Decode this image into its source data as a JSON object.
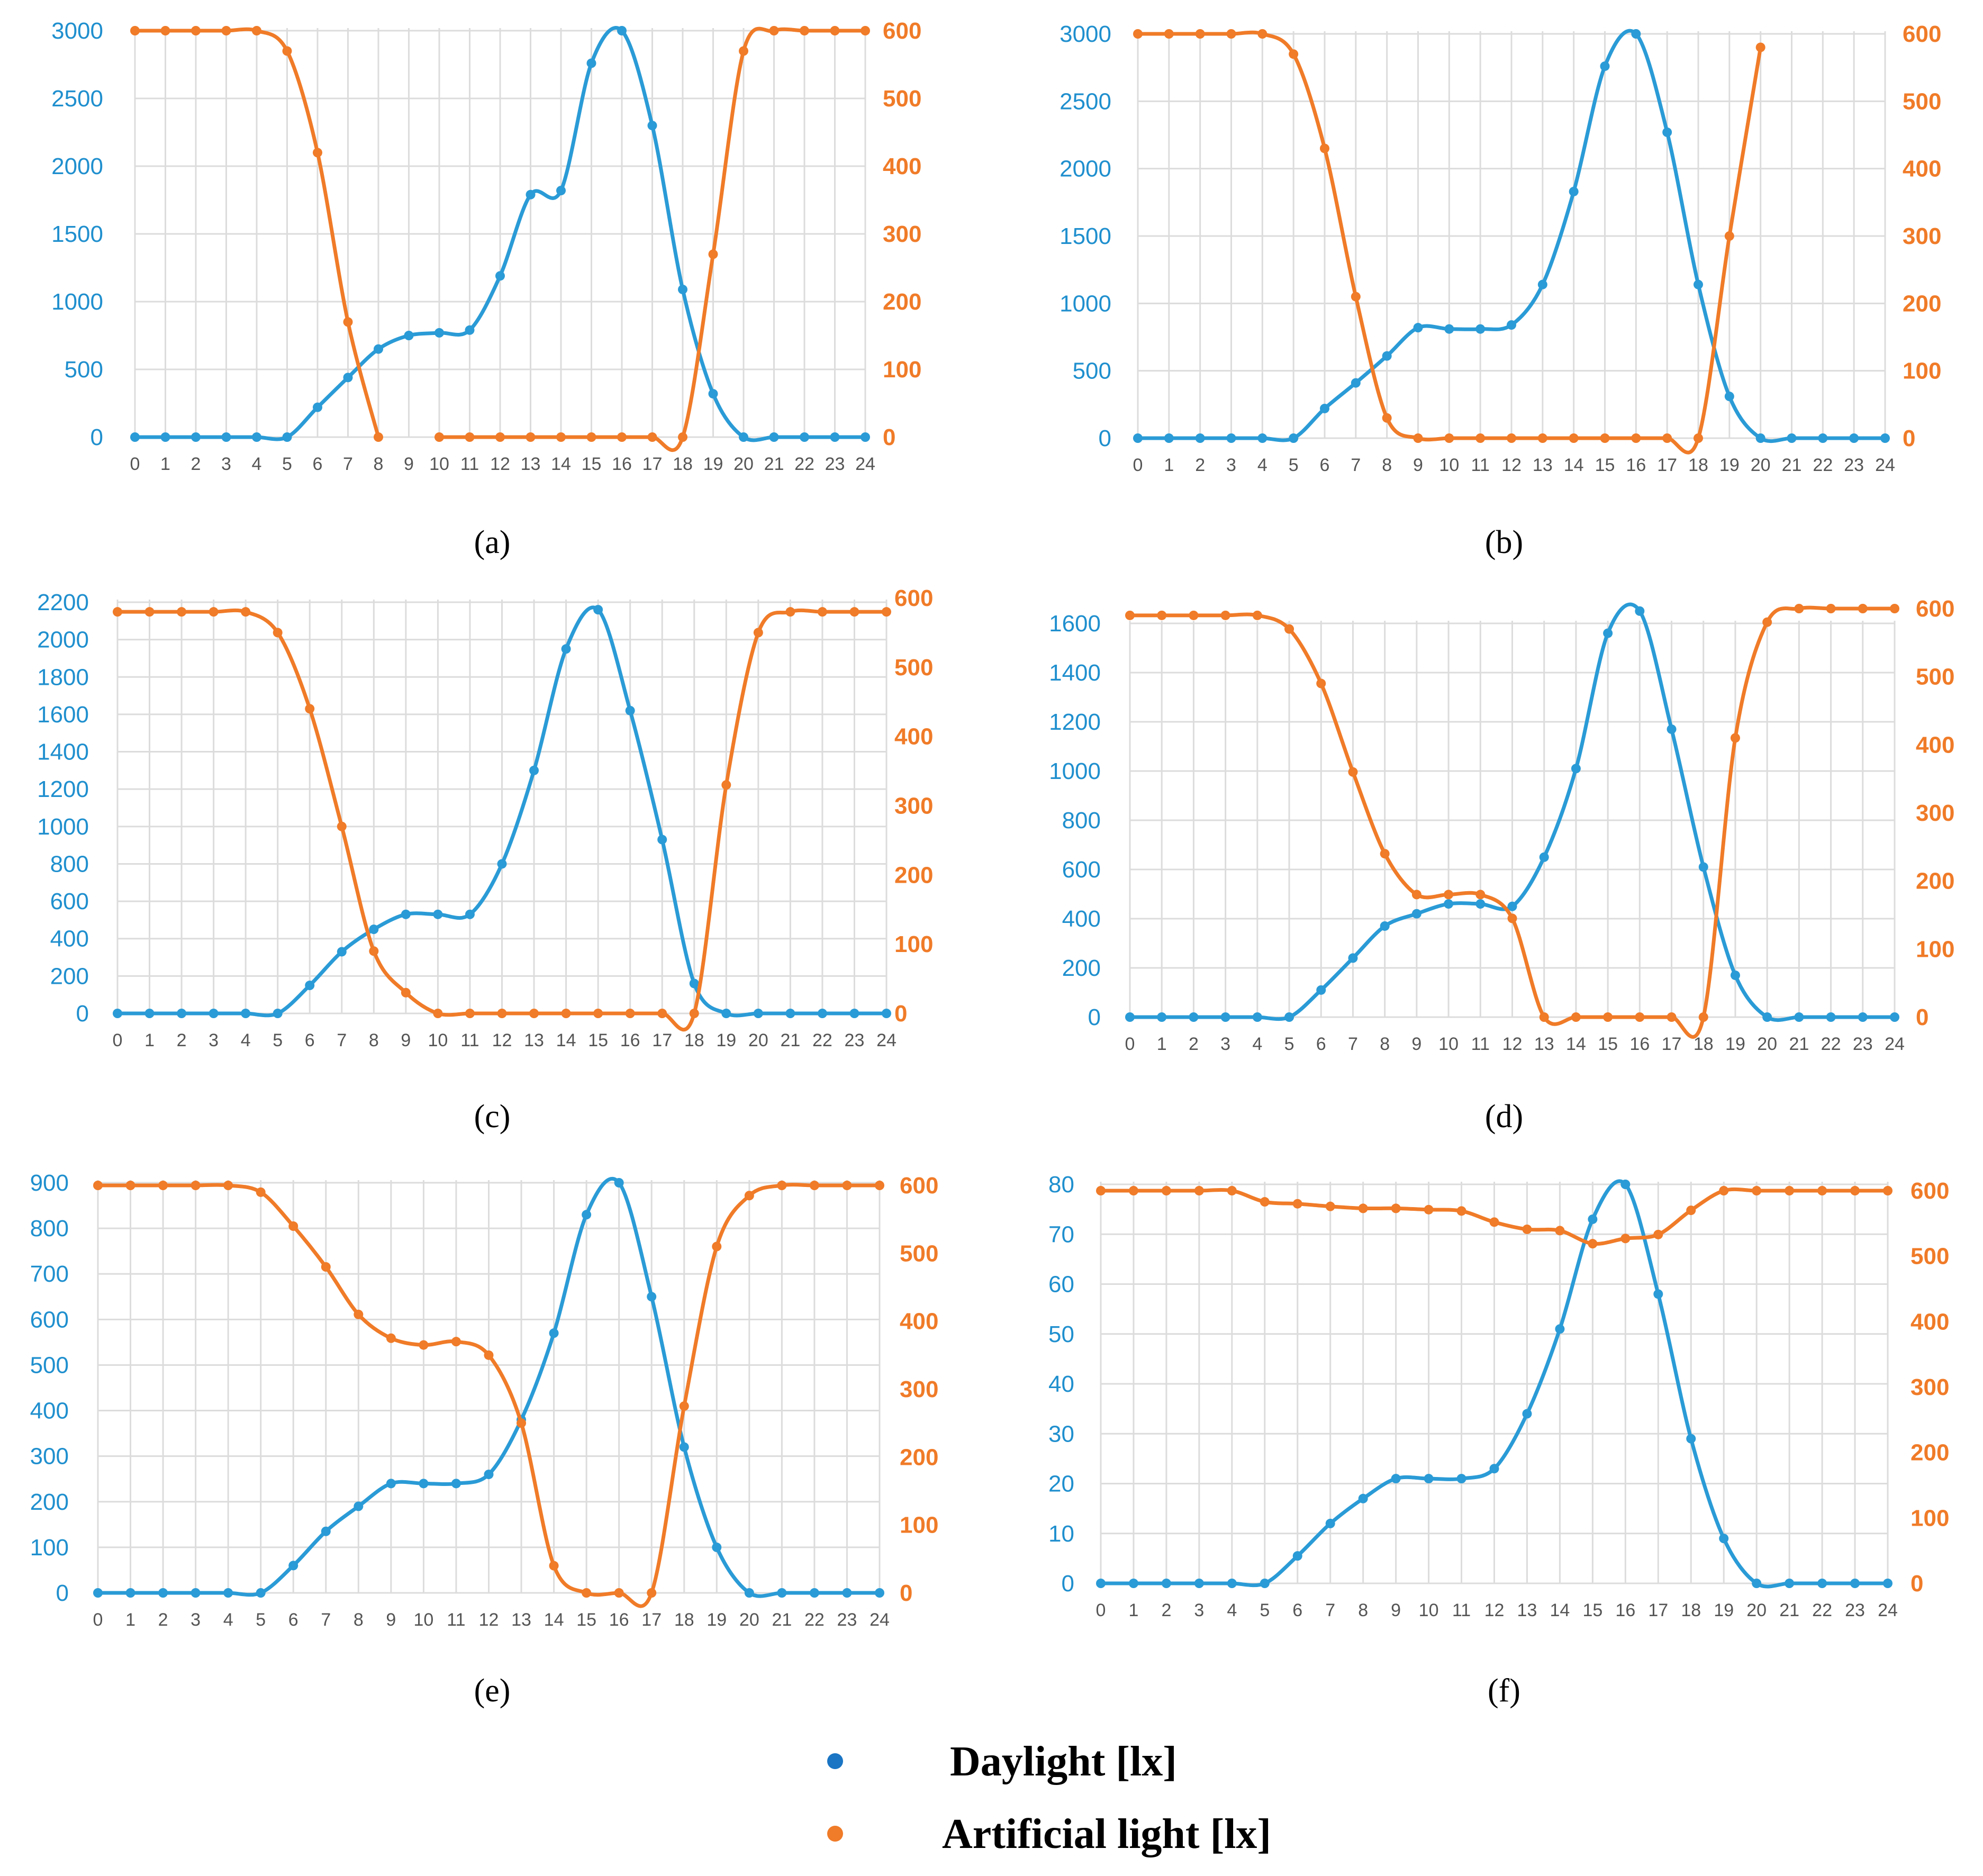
{
  "chart_data": [
    {
      "type": "line",
      "label": "a",
      "categories": [
        "0",
        "1",
        "2",
        "3",
        "4",
        "5",
        "6",
        "7",
        "8",
        "9",
        "10",
        "11",
        "12",
        "13",
        "14",
        "15",
        "16",
        "17",
        "18",
        "19",
        "20",
        "21",
        "22",
        "23",
        "24"
      ],
      "y_left": {
        "ticks": [
          "0",
          "500",
          "1000",
          "1500",
          "2000",
          "2500",
          "3000"
        ],
        "ylim": [
          0,
          3000
        ]
      },
      "y_right": {
        "ticks": [
          "0",
          "100",
          "200",
          "300",
          "400",
          "500",
          "600"
        ],
        "ylim": [
          0,
          600
        ]
      },
      "series": [
        {
          "name": "Daylight [lx]",
          "axis": "left",
          "values": [
            0,
            0,
            0,
            0,
            0,
            0,
            220,
            440,
            650,
            750,
            770,
            790,
            1190,
            1790,
            1820,
            2760,
            3000,
            2300,
            1090,
            320,
            0,
            0,
            0,
            0,
            0
          ]
        },
        {
          "name": "Artificial light [lx]",
          "axis": "right",
          "values": [
            600,
            600,
            600,
            600,
            600,
            570,
            420,
            170,
            0,
            null,
            0,
            0,
            0,
            0,
            0,
            0,
            0,
            0,
            0,
            270,
            570,
            600,
            600,
            600,
            600
          ]
        }
      ]
    },
    {
      "type": "line",
      "label": "b",
      "categories": [
        "0",
        "1",
        "2",
        "3",
        "4",
        "5",
        "6",
        "7",
        "8",
        "9",
        "10",
        "11",
        "12",
        "13",
        "14",
        "15",
        "16",
        "17",
        "18",
        "19",
        "20",
        "21",
        "22",
        "23",
        "24"
      ],
      "y_left": {
        "ticks": [
          "0",
          "500",
          "1000",
          "1500",
          "2000",
          "2500",
          "3000"
        ],
        "ylim": [
          0,
          3000
        ]
      },
      "y_right": {
        "ticks": [
          "0",
          "100",
          "200",
          "300",
          "400",
          "500",
          "600"
        ],
        "ylim": [
          0,
          600
        ]
      },
      "series": [
        {
          "name": "Daylight [lx]",
          "axis": "left",
          "values": [
            0,
            0,
            0,
            0,
            0,
            0,
            220,
            410,
            610,
            820,
            810,
            810,
            840,
            1140,
            1830,
            2760,
            3000,
            2270,
            1140,
            310,
            0,
            0,
            0,
            0,
            0
          ]
        },
        {
          "name": "Artificial light [lx]",
          "axis": "right",
          "values": [
            600,
            600,
            600,
            600,
            600,
            570,
            430,
            210,
            30,
            0,
            0,
            0,
            0,
            0,
            0,
            0,
            0,
            0,
            0,
            300,
            580,
            null,
            null,
            null,
            null
          ]
        }
      ]
    },
    {
      "type": "line",
      "label": "c",
      "categories": [
        "0",
        "1",
        "2",
        "3",
        "4",
        "5",
        "6",
        "7",
        "8",
        "9",
        "10",
        "11",
        "12",
        "13",
        "14",
        "15",
        "16",
        "17",
        "18",
        "19",
        "20",
        "21",
        "22",
        "23",
        "24"
      ],
      "y_left": {
        "ticks": [
          "0",
          "200",
          "400",
          "600",
          "800",
          "1000",
          "1200",
          "1400",
          "1600",
          "1800",
          "2000",
          "2200"
        ],
        "ylim": [
          0,
          2200
        ]
      },
      "y_right": {
        "ticks": [
          "0",
          "100",
          "200",
          "300",
          "400",
          "500",
          "600"
        ],
        "ylim": [
          0,
          600
        ]
      },
      "series": [
        {
          "name": "Daylight [lx]",
          "axis": "left",
          "values": [
            0,
            0,
            0,
            0,
            0,
            0,
            150,
            330,
            450,
            530,
            530,
            530,
            800,
            1300,
            1950,
            2160,
            1620,
            930,
            160,
            0,
            0,
            0,
            0,
            0,
            0
          ]
        },
        {
          "name": "Artificial light [lx]",
          "axis": "right",
          "values": [
            580,
            580,
            580,
            580,
            580,
            550,
            440,
            270,
            90,
            30,
            0,
            0,
            0,
            0,
            0,
            0,
            0,
            0,
            0,
            330,
            550,
            580,
            580,
            580,
            580
          ]
        }
      ]
    },
    {
      "type": "line",
      "label": "d",
      "categories": [
        "0",
        "1",
        "2",
        "3",
        "4",
        "5",
        "6",
        "7",
        "8",
        "9",
        "10",
        "11",
        "12",
        "13",
        "14",
        "15",
        "16",
        "17",
        "18",
        "19",
        "20",
        "21",
        "22",
        "23",
        "24"
      ],
      "y_left": {
        "ticks": [
          "0",
          "200",
          "400",
          "600",
          "800",
          "1000",
          "1200",
          "1400",
          "1600"
        ],
        "ylim": [
          0,
          1700
        ]
      },
      "y_right": {
        "ticks": [
          "0",
          "100",
          "200",
          "300",
          "400",
          "500",
          "600"
        ],
        "ylim": [
          0,
          600
        ]
      },
      "series": [
        {
          "name": "Daylight [lx]",
          "axis": "left",
          "values": [
            0,
            0,
            0,
            0,
            0,
            0,
            110,
            240,
            370,
            420,
            460,
            460,
            450,
            650,
            1010,
            1560,
            1650,
            1170,
            610,
            170,
            0,
            0,
            0,
            0,
            0
          ]
        },
        {
          "name": "Artificial light [lx]",
          "axis": "right",
          "values": [
            590,
            590,
            590,
            590,
            590,
            570,
            490,
            360,
            240,
            180,
            180,
            180,
            145,
            0,
            0,
            0,
            0,
            0,
            0,
            410,
            580,
            600,
            600,
            600,
            600
          ]
        }
      ]
    },
    {
      "type": "line",
      "label": "e",
      "categories": [
        "0",
        "1",
        "2",
        "3",
        "4",
        "5",
        "6",
        "7",
        "8",
        "9",
        "10",
        "11",
        "12",
        "13",
        "14",
        "15",
        "16",
        "17",
        "18",
        "19",
        "20",
        "21",
        "22",
        "23",
        "24"
      ],
      "y_left": {
        "ticks": [
          "0",
          "100",
          "200",
          "300",
          "400",
          "500",
          "600",
          "700",
          "800",
          "900"
        ],
        "ylim": [
          0,
          900
        ]
      },
      "y_right": {
        "ticks": [
          "0",
          "100",
          "200",
          "300",
          "400",
          "500",
          "600"
        ],
        "ylim": [
          0,
          600
        ]
      },
      "series": [
        {
          "name": "Daylight [lx]",
          "axis": "left",
          "values": [
            0,
            0,
            0,
            0,
            0,
            0,
            60,
            135,
            190,
            240,
            240,
            240,
            260,
            380,
            570,
            830,
            900,
            650,
            320,
            100,
            0,
            0,
            0,
            0,
            0
          ]
        },
        {
          "name": "Artificial light [lx]",
          "axis": "right",
          "values": [
            600,
            600,
            600,
            600,
            600,
            590,
            540,
            480,
            410,
            375,
            365,
            370,
            350,
            250,
            40,
            0,
            0,
            0,
            275,
            510,
            585,
            600,
            600,
            600,
            600
          ]
        }
      ]
    },
    {
      "type": "line",
      "label": "f",
      "categories": [
        "0",
        "1",
        "2",
        "3",
        "4",
        "5",
        "6",
        "7",
        "8",
        "9",
        "10",
        "11",
        "12",
        "13",
        "14",
        "15",
        "16",
        "17",
        "18",
        "19",
        "20",
        "21",
        "22",
        "23",
        "24"
      ],
      "y_left": {
        "ticks": [
          "0",
          "10",
          "20",
          "30",
          "40",
          "50",
          "60",
          "70",
          "80"
        ],
        "ylim": [
          0,
          80
        ]
      },
      "y_right": {
        "ticks": [
          "0",
          "100",
          "200",
          "300",
          "400",
          "500",
          "600"
        ],
        "ylim": [
          0,
          600
        ]
      },
      "series": [
        {
          "name": "Daylight [lx]",
          "axis": "left",
          "values": [
            0,
            0,
            0,
            0,
            0,
            0,
            5.5,
            12,
            17,
            21,
            21,
            21,
            23,
            34,
            51,
            73,
            80,
            58,
            29,
            9,
            0,
            0,
            0,
            0,
            0
          ]
        },
        {
          "name": "Artificial light [lx]",
          "axis": "right",
          "values": [
            600,
            600,
            600,
            600,
            600,
            583,
            580,
            576,
            573,
            573,
            571,
            569,
            552,
            541,
            539,
            519,
            527,
            533,
            570,
            600,
            600,
            600,
            600,
            600,
            600
          ]
        }
      ]
    }
  ],
  "panel_labels": [
    "(a)",
    "(b)",
    "(c)",
    "(d)",
    "(e)",
    "(f)"
  ],
  "legend": [
    {
      "label": "Daylight [lx]",
      "color": "#1a75c4"
    },
    {
      "label": "Artificial light [lx]",
      "color": "#f07b28"
    }
  ],
  "colors": {
    "daylight": "#2a9bd6",
    "artificial": "#f07b28",
    "left_axis_text": "#1f8fce",
    "right_axis_text": "#f07b28"
  }
}
